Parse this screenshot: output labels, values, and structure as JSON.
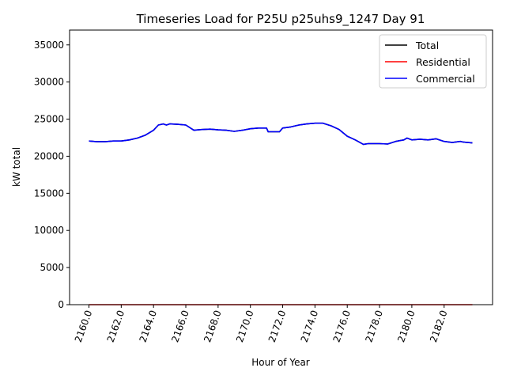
{
  "chart_data": {
    "type": "line",
    "title": "Timeseries Load for P25U p25uhs9_1247  Day 91",
    "xlabel": "Hour of Year",
    "ylabel": "kW total",
    "xlim": [
      2158.8,
      2185.0
    ],
    "ylim": [
      0,
      37000
    ],
    "xticks": [
      2160,
      2162,
      2164,
      2166,
      2168,
      2170,
      2172,
      2174,
      2176,
      2178,
      2180,
      2182
    ],
    "xtick_labels": [
      "2160.0",
      "2162.0",
      "2164.0",
      "2166.0",
      "2168.0",
      "2170.0",
      "2172.0",
      "2174.0",
      "2176.0",
      "2178.0",
      "2180.0",
      "2182.0"
    ],
    "yticks": [
      0,
      5000,
      10000,
      15000,
      20000,
      25000,
      30000,
      35000
    ],
    "ytick_labels": [
      "0",
      "5000",
      "10000",
      "15000",
      "20000",
      "25000",
      "30000",
      "35000"
    ],
    "legend_position": "top-right",
    "x": [
      2160,
      2160.5,
      2161,
      2161.5,
      2162,
      2162.5,
      2163,
      2163.5,
      2164,
      2164.3,
      2164.6,
      2164.8,
      2165,
      2165.5,
      2166,
      2166.5,
      2167,
      2167.5,
      2168,
      2168.5,
      2169,
      2169.5,
      2170,
      2170.5,
      2171,
      2171.1,
      2171.8,
      2172,
      2172.5,
      2173,
      2173.5,
      2174,
      2174.5,
      2175,
      2175.5,
      2176,
      2176.5,
      2177,
      2177.3,
      2178,
      2178.5,
      2179,
      2179.5,
      2179.7,
      2180,
      2180.5,
      2181,
      2181.5,
      2182,
      2182.5,
      2183,
      2183.2,
      2183.75
    ],
    "series": [
      {
        "name": "Total",
        "color": "#000000",
        "values": [
          22050,
          21950,
          21950,
          22050,
          22050,
          22200,
          22450,
          22850,
          23500,
          24200,
          24350,
          24200,
          24350,
          24300,
          24200,
          23500,
          23600,
          23650,
          23550,
          23500,
          23350,
          23500,
          23700,
          23800,
          23800,
          23300,
          23300,
          23800,
          23950,
          24200,
          24350,
          24450,
          24450,
          24100,
          23600,
          22700,
          22200,
          21600,
          21700,
          21700,
          21650,
          22000,
          22200,
          22450,
          22200,
          22300,
          22200,
          22350,
          22000,
          21850,
          22000,
          21900,
          21800
        ]
      },
      {
        "name": "Residential",
        "color": "#ff0000",
        "values": [
          0,
          0,
          0,
          0,
          0,
          0,
          0,
          0,
          0,
          0,
          0,
          0,
          0,
          0,
          0,
          0,
          0,
          0,
          0,
          0,
          0,
          0,
          0,
          0,
          0,
          0,
          0,
          0,
          0,
          0,
          0,
          0,
          0,
          0,
          0,
          0,
          0,
          0,
          0,
          0,
          0,
          0,
          0,
          0,
          0,
          0,
          0,
          0,
          0,
          0,
          0,
          0,
          0
        ]
      },
      {
        "name": "Commercial",
        "color": "#0000ff",
        "values": [
          22050,
          21950,
          21950,
          22050,
          22050,
          22200,
          22450,
          22850,
          23500,
          24200,
          24350,
          24200,
          24350,
          24300,
          24200,
          23500,
          23600,
          23650,
          23550,
          23500,
          23350,
          23500,
          23700,
          23800,
          23800,
          23300,
          23300,
          23800,
          23950,
          24200,
          24350,
          24450,
          24450,
          24100,
          23600,
          22700,
          22200,
          21600,
          21700,
          21700,
          21650,
          22000,
          22200,
          22450,
          22200,
          22300,
          22200,
          22350,
          22000,
          21850,
          22000,
          21900,
          21800
        ]
      }
    ]
  }
}
